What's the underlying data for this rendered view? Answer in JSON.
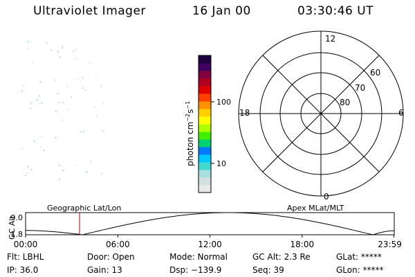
{
  "header": {
    "instrument": "Ultraviolet Imager",
    "date": "16 Jan 00",
    "time": "03:30:46 UT"
  },
  "colorbar": {
    "label_main": "photon cm",
    "label_sup1": "−2",
    "label_mid": "s",
    "label_sup2": "−1",
    "ticks": [
      {
        "label": "100",
        "value": 100
      },
      {
        "label": "10",
        "value": 10
      }
    ],
    "colors": [
      "#e8e8e8",
      "#d4e0e0",
      "#a8e0e0",
      "#40d8d0",
      "#00c8ff",
      "#0078ff",
      "#00d070",
      "#40f000",
      "#b0ff00",
      "#ffff00",
      "#ffd000",
      "#ff9000",
      "#ff4000",
      "#e00000",
      "#b00020",
      "#800040",
      "#400060",
      "#200040"
    ]
  },
  "polar": {
    "mlt_labels": {
      "top": "12",
      "left": "18",
      "right": "6",
      "bottom": "0"
    },
    "lat_labels": [
      "60",
      "70",
      "80"
    ]
  },
  "timeline": {
    "ylabel": "GC Alt",
    "ymax": "9.0",
    "ymin": "1.8",
    "left_title": "Geographic Lat/Lon",
    "right_title": "Apex MLat/MLT",
    "xticks": [
      "00:00",
      "06:00",
      "12:00",
      "18:00",
      "23:59"
    ],
    "current_time_hours": 3.51,
    "altitude_curve_hours": [
      0,
      3.7,
      13.2,
      22.6,
      23.98
    ],
    "altitude_curve_re": [
      3.2,
      1.8,
      9.0,
      1.8,
      3.1
    ]
  },
  "status": {
    "filter": "Flt: LBHL",
    "ip": "IP: 36.0",
    "door": "Door: Open",
    "gain": "Gain: 13",
    "mode": "Mode: Normal",
    "dsp": "Dsp: −139.9",
    "gcalt": "GC Alt: 2.3 Re",
    "seq": "Seq: 39",
    "glat": "GLat: *****",
    "glon": "GLon: *****"
  }
}
